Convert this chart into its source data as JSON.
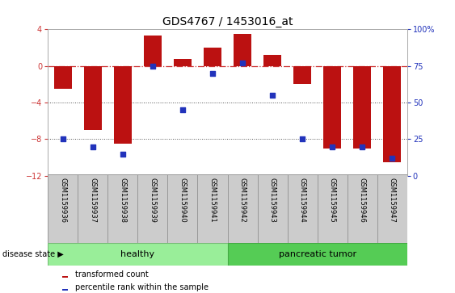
{
  "title": "GDS4767 / 1453016_at",
  "samples": [
    "GSM1159936",
    "GSM1159937",
    "GSM1159938",
    "GSM1159939",
    "GSM1159940",
    "GSM1159941",
    "GSM1159942",
    "GSM1159943",
    "GSM1159944",
    "GSM1159945",
    "GSM1159946",
    "GSM1159947"
  ],
  "red_bars": [
    -2.5,
    -7.0,
    -8.5,
    3.3,
    0.8,
    2.0,
    3.5,
    1.2,
    -2.0,
    -9.0,
    -9.0,
    -10.5
  ],
  "blue_dots_pct": [
    25,
    20,
    15,
    75,
    45,
    70,
    77,
    55,
    25,
    20,
    20,
    12
  ],
  "ylim_left": [
    -12,
    4
  ],
  "ylim_right": [
    0,
    100
  ],
  "left_yticks": [
    4,
    0,
    -4,
    -8,
    -12
  ],
  "right_yticks": [
    100,
    75,
    50,
    25,
    0
  ],
  "bar_color": "#BB1111",
  "dot_color": "#2233BB",
  "zeroline_color": "#CC3333",
  "grid_color": "#555555",
  "bg_color": "#FFFFFF",
  "plot_bg": "#FFFFFF",
  "healthy_count": 6,
  "tumor_count": 6,
  "healthy_color": "#99EE99",
  "tumor_color": "#55CC55",
  "label_box_color": "#CCCCCC",
  "disease_label": "disease state",
  "healthy_label": "healthy",
  "tumor_label": "pancreatic tumor",
  "legend_red": "transformed count",
  "legend_blue": "percentile rank within the sample"
}
